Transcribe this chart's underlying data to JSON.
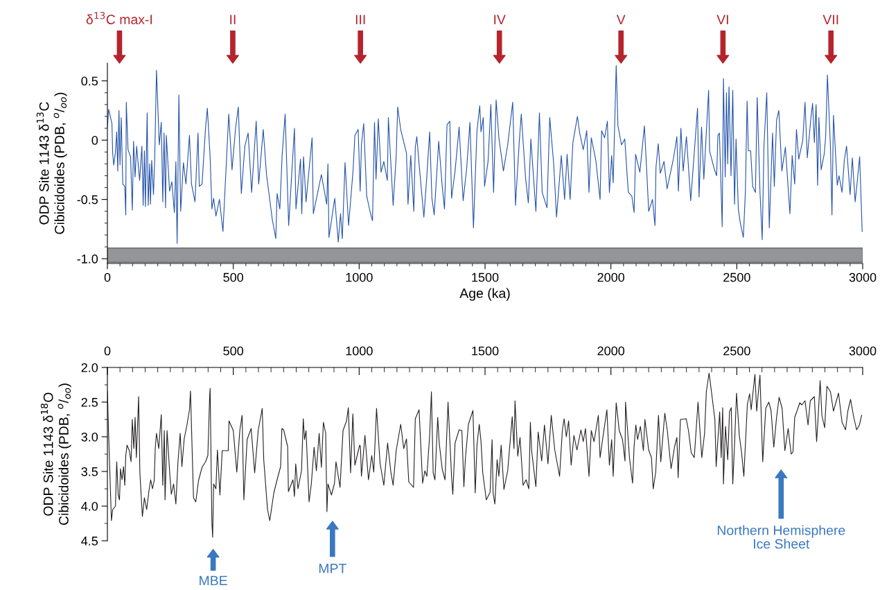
{
  "chart_data": [
    {
      "type": "line",
      "xlabel": "Age (ka)",
      "ylabel": "ODP Site 1143 δ$^{13}$C\nCibicidoides (PDB, $^{o}$/$_{oo}$)",
      "xlim": [
        0,
        3000
      ],
      "ylim": [
        -1.04,
        0.65
      ],
      "xticks": [
        0,
        500,
        1000,
        1500,
        2000,
        2500,
        3000,
        {
          "value": 50,
          "label": null
        },
        {
          "value": 100,
          "label": null
        },
        {
          "value": 150,
          "label": null
        },
        {
          "value": 200,
          "label": null
        },
        {
          "value": 250,
          "label": null
        },
        {
          "value": 300,
          "label": null
        },
        {
          "value": 350,
          "label": null
        },
        {
          "value": 400,
          "label": null
        },
        {
          "value": 450,
          "label": null
        },
        {
          "value": 550,
          "label": null
        },
        {
          "value": 600,
          "label": null
        },
        {
          "value": 650,
          "label": null
        },
        {
          "value": 700,
          "label": null
        },
        {
          "value": 750,
          "label": null
        },
        {
          "value": 800,
          "label": null
        },
        {
          "value": 850,
          "label": null
        },
        {
          "value": 900,
          "label": null
        },
        {
          "value": 950,
          "label": null
        },
        {
          "value": 1050,
          "label": null
        },
        {
          "value": 1100,
          "label": null
        },
        {
          "value": 1150,
          "label": null
        },
        {
          "value": 1200,
          "label": null
        },
        {
          "value": 1250,
          "label": null
        },
        {
          "value": 1300,
          "label": null
        },
        {
          "value": 1350,
          "label": null
        },
        {
          "value": 1400,
          "label": null
        },
        {
          "value": 1450,
          "label": null
        },
        {
          "value": 1550,
          "label": null
        },
        {
          "value": 1600,
          "label": null
        },
        {
          "value": 1650,
          "label": null
        },
        {
          "value": 1700,
          "label": null
        },
        {
          "value": 1750,
          "label": null
        },
        {
          "value": 1800,
          "label": null
        },
        {
          "value": 1850,
          "label": null
        },
        {
          "value": 1900,
          "label": null
        },
        {
          "value": 1950,
          "label": null
        },
        {
          "value": 2050,
          "label": null
        },
        {
          "value": 2100,
          "label": null
        },
        {
          "value": 2150,
          "label": null
        },
        {
          "value": 2200,
          "label": null
        },
        {
          "value": 2250,
          "label": null
        },
        {
          "value": 2300,
          "label": null
        },
        {
          "value": 2350,
          "label": null
        },
        {
          "value": 2400,
          "label": null
        },
        {
          "value": 2450,
          "label": null
        },
        {
          "value": 2550,
          "label": null
        },
        {
          "value": 2600,
          "label": null
        },
        {
          "value": 2650,
          "label": null
        },
        {
          "value": 2700,
          "label": null
        },
        {
          "value": 2750,
          "label": null
        },
        {
          "value": 2800,
          "label": null
        },
        {
          "value": 2850,
          "label": null
        },
        {
          "value": 2900,
          "label": null
        },
        {
          "value": 2950,
          "label": null
        }
      ],
      "yticks": [
        {
          "value": -1.0,
          "label": "-1.0"
        },
        {
          "value": -0.5,
          "label": "-0.5"
        },
        0,
        0.5,
        {
          "value": -0.9,
          "label": null
        },
        {
          "value": -0.8,
          "label": null
        },
        {
          "value": -0.7,
          "label": null
        },
        {
          "value": -0.6,
          "label": null
        },
        {
          "value": -0.4,
          "label": null
        },
        {
          "value": -0.3,
          "label": null
        },
        {
          "value": -0.2,
          "label": null
        },
        {
          "value": -0.1,
          "label": null
        },
        {
          "value": 0.1,
          "label": null
        },
        {
          "value": 0.2,
          "label": null
        },
        {
          "value": 0.3,
          "label": null
        },
        {
          "value": 0.4,
          "label": null
        }
      ],
      "bands": [
        {
          "axis": "y",
          "from": -1.03,
          "to": -0.91,
          "color": "#939598"
        }
      ],
      "annotations": [
        "δ$^{13}$C max-I",
        "II",
        "III",
        "IV",
        "V",
        "VI",
        "VII"
      ],
      "series": [
        {
          "color": "#2352a8",
          "x": [
            0,
            5,
            18,
            21,
            25,
            32,
            37,
            41,
            46,
            50,
            55,
            61,
            69,
            73,
            75,
            82,
            92,
            99,
            104,
            110,
            116,
            128,
            137,
            142,
            147,
            151,
            158,
            162,
            168,
            171,
            176,
            183,
            188,
            195,
            206,
            214,
            220,
            225,
            231,
            234,
            247,
            256,
            266,
            272,
            277,
            284,
            291,
            302,
            312,
            326,
            334,
            348,
            360,
            365,
            376,
            390,
            397,
            408,
            415,
            422,
            431,
            445,
            459,
            482,
            495,
            509,
            520,
            532,
            546,
            559,
            573,
            591,
            601,
            619,
            632,
            655,
            669,
            674,
            685,
            694,
            706,
            720,
            743,
            749,
            767,
            772,
            779,
            789,
            813,
            818,
            850,
            871,
            876,
            880,
            903,
            917,
            926,
            933,
            944,
            958,
            976,
            983,
            996,
            1004,
            1009,
            1018,
            1030,
            1043,
            1053,
            1061,
            1067,
            1076,
            1087,
            1098,
            1112,
            1116,
            1135,
            1147,
            1153,
            1165,
            1188,
            1194,
            1205,
            1217,
            1223,
            1229,
            1238,
            1257,
            1269,
            1280,
            1289,
            1298,
            1316,
            1330,
            1339,
            1349,
            1360,
            1367,
            1381,
            1397,
            1413,
            1427,
            1440,
            1454,
            1468,
            1479,
            1484,
            1493,
            1498,
            1512,
            1523,
            1534,
            1544,
            1555,
            1573,
            1590,
            1610,
            1621,
            1636,
            1644,
            1661,
            1672,
            1682,
            1702,
            1716,
            1727,
            1746,
            1757,
            1773,
            1784,
            1803,
            1816,
            1826,
            1838,
            1849,
            1867,
            1876,
            1890,
            1904,
            1913,
            1922,
            1940,
            1957,
            1963,
            1975,
            1986,
            1994,
            2003,
            2009,
            2021,
            2028,
            2042,
            2055,
            2069,
            2083,
            2092,
            2098,
            2115,
            2133,
            2142,
            2150,
            2165,
            2175,
            2179,
            2188,
            2196,
            2211,
            2223,
            2248,
            2262,
            2268,
            2278,
            2287,
            2300,
            2317,
            2344,
            2350,
            2360,
            2369,
            2388,
            2392,
            2410,
            2420,
            2425,
            2431,
            2442,
            2447,
            2454,
            2459,
            2464,
            2469,
            2477,
            2484,
            2491,
            2497,
            2506,
            2514,
            2526,
            2534,
            2541,
            2546,
            2555,
            2563,
            2574,
            2581,
            2592,
            2601,
            2608,
            2619,
            2629,
            2642,
            2649,
            2658,
            2667,
            2679,
            2693,
            2711,
            2720,
            2730,
            2737,
            2746,
            2762,
            2771,
            2780,
            2794,
            2801,
            2808,
            2815,
            2821,
            2826,
            2835,
            2847,
            2853,
            2860,
            2872,
            2878,
            2884,
            2899,
            2906,
            2918,
            2927,
            2936,
            2950,
            2959,
            2970,
            2977,
            2988,
            2998
          ],
          "values": [
            0.11,
            0.26,
            0.14,
            -0.11,
            -0.21,
            -0.1,
            0.07,
            -0.26,
            0.25,
            -0.21,
            0.19,
            -0.37,
            -0.39,
            -0.63,
            0.32,
            -0.08,
            -0.14,
            -0.59,
            -0.01,
            -0.31,
            -0.05,
            -0.34,
            -0.05,
            -0.55,
            -0.09,
            -0.56,
            0.23,
            -0.55,
            -0.2,
            -0.54,
            -0.17,
            -0.46,
            -0.15,
            0.59,
            -0.04,
            0.15,
            -0.52,
            0.06,
            -0.57,
            0.04,
            -0.43,
            -0.35,
            -0.61,
            -0.18,
            -0.87,
            0.38,
            -0.6,
            -0.19,
            -0.37,
            0.04,
            -0.37,
            -0.52,
            0.06,
            -0.39,
            -0.37,
            0.11,
            0.27,
            -0.14,
            -0.58,
            -0.49,
            -0.64,
            -0.5,
            -0.77,
            0.22,
            -0.25,
            0.1,
            0.28,
            -0.45,
            -0.05,
            0.06,
            -0.44,
            0.16,
            -0.37,
            0.09,
            -0.29,
            -0.67,
            -0.83,
            -0.45,
            -0.58,
            -0.13,
            0.22,
            -0.72,
            0.1,
            -0.58,
            -0.16,
            -0.62,
            -0.14,
            -0.52,
            0.02,
            -0.62,
            -0.29,
            -0.54,
            -0.2,
            -0.82,
            -0.49,
            -0.86,
            -0.62,
            -0.83,
            -0.19,
            -0.72,
            -0.25,
            0.04,
            0.09,
            -0.43,
            -0.04,
            0.14,
            -0.47,
            -0.6,
            -0.68,
            0.15,
            -0.33,
            0.18,
            -0.27,
            -0.18,
            -0.34,
            0.19,
            -0.55,
            -0.14,
            0.28,
            0.09,
            -0.11,
            -0.54,
            -0.13,
            -0.6,
            -0.06,
            0.03,
            -0.2,
            -0.65,
            -0.3,
            0.07,
            -0.49,
            -0.63,
            -0.01,
            -0.39,
            -0.58,
            0.13,
            0.16,
            -0.49,
            -0.26,
            0.11,
            -0.51,
            -0.24,
            0.15,
            -0.74,
            0.08,
            0.29,
            0.07,
            0.19,
            -0.39,
            -0.18,
            0.3,
            -0.44,
            0.34,
            0.02,
            -0.26,
            -0.04,
            0.32,
            -0.55,
            -0.01,
            0.22,
            -0.32,
            -0.53,
            0.01,
            -0.6,
            0.23,
            -0.44,
            -0.57,
            0.19,
            -0.21,
            -0.65,
            -0.13,
            -0.5,
            -0.12,
            -0.5,
            -0.02,
            0.2,
            0.06,
            -0.08,
            0.08,
            -0.44,
            0.02,
            -0.17,
            -0.5,
            0.08,
            0.02,
            0.16,
            -0.44,
            -0.13,
            -0.36,
            0.63,
            0.12,
            -0.04,
            0.01,
            -0.44,
            -0.47,
            -0.61,
            -0.12,
            -0.27,
            0.12,
            -0.25,
            -0.6,
            -0.5,
            -0.72,
            -0.23,
            -0.03,
            -0.28,
            -0.18,
            -0.41,
            -0.16,
            0.03,
            -0.43,
            0.1,
            -0.26,
            0.03,
            -0.51,
            0.27,
            -0.48,
            0.11,
            -0.33,
            0.42,
            -0.09,
            -0.24,
            -0.3,
            0.04,
            0.06,
            -0.73,
            0.52,
            -0.31,
            0.4,
            -0.2,
            0.45,
            -0.3,
            0.42,
            -0.54,
            0.01,
            -0.58,
            -0.7,
            -0.82,
            -0.44,
            0.33,
            -0.09,
            -0.09,
            -0.39,
            -0.44,
            0.36,
            -0.43,
            -0.84,
            -0.04,
            0.4,
            -0.74,
            0.06,
            -0.39,
            0.17,
            0.25,
            -0.26,
            -0.06,
            -0.62,
            -0.13,
            -0.37,
            0.09,
            -0.16,
            0.0,
            0.32,
            -0.15,
            0.18,
            0.31,
            -0.02,
            0.3,
            -0.38,
            0.19,
            -0.25,
            -0.12,
            0.03,
            0.55,
            -0.06,
            -0.63,
            0.21,
            -0.38,
            -0.3,
            -0.44,
            -0.17,
            -0.05,
            -0.46,
            -0.15,
            -0.52,
            -0.38,
            -0.14,
            -0.77
          ]
        }
      ]
    },
    {
      "type": "line",
      "ylabel": "ODP Site 1143 δ$^{18}$O\nCibicidoides (PDB, $^{o}$/$_{oo}$)",
      "xlim": [
        0,
        3000
      ],
      "ylim": [
        4.5,
        2.0
      ],
      "xticks": [
        0,
        500,
        1000,
        1500,
        2000,
        2500,
        3000,
        {
          "value": 50,
          "label": null
        },
        {
          "value": 100,
          "label": null
        },
        {
          "value": 150,
          "label": null
        },
        {
          "value": 200,
          "label": null
        },
        {
          "value": 250,
          "label": null
        },
        {
          "value": 300,
          "label": null
        },
        {
          "value": 350,
          "label": null
        },
        {
          "value": 400,
          "label": null
        },
        {
          "value": 450,
          "label": null
        },
        {
          "value": 550,
          "label": null
        },
        {
          "value": 600,
          "label": null
        },
        {
          "value": 650,
          "label": null
        },
        {
          "value": 700,
          "label": null
        },
        {
          "value": 750,
          "label": null
        },
        {
          "value": 800,
          "label": null
        },
        {
          "value": 850,
          "label": null
        },
        {
          "value": 900,
          "label": null
        },
        {
          "value": 950,
          "label": null
        },
        {
          "value": 1050,
          "label": null
        },
        {
          "value": 1100,
          "label": null
        },
        {
          "value": 1150,
          "label": null
        },
        {
          "value": 1200,
          "label": null
        },
        {
          "value": 1250,
          "label": null
        },
        {
          "value": 1300,
          "label": null
        },
        {
          "value": 1350,
          "label": null
        },
        {
          "value": 1400,
          "label": null
        },
        {
          "value": 1450,
          "label": null
        },
        {
          "value": 1550,
          "label": null
        },
        {
          "value": 1600,
          "label": null
        },
        {
          "value": 1650,
          "label": null
        },
        {
          "value": 1700,
          "label": null
        },
        {
          "value": 1750,
          "label": null
        },
        {
          "value": 1800,
          "label": null
        },
        {
          "value": 1850,
          "label": null
        },
        {
          "value": 1900,
          "label": null
        },
        {
          "value": 1950,
          "label": null
        },
        {
          "value": 2050,
          "label": null
        },
        {
          "value": 2100,
          "label": null
        },
        {
          "value": 2150,
          "label": null
        },
        {
          "value": 2200,
          "label": null
        },
        {
          "value": 2250,
          "label": null
        },
        {
          "value": 2300,
          "label": null
        },
        {
          "value": 2350,
          "label": null
        },
        {
          "value": 2400,
          "label": null
        },
        {
          "value": 2450,
          "label": null
        },
        {
          "value": 2550,
          "label": null
        },
        {
          "value": 2600,
          "label": null
        },
        {
          "value": 2650,
          "label": null
        },
        {
          "value": 2700,
          "label": null
        },
        {
          "value": 2750,
          "label": null
        },
        {
          "value": 2800,
          "label": null
        },
        {
          "value": 2850,
          "label": null
        },
        {
          "value": 2900,
          "label": null
        },
        {
          "value": 2950,
          "label": null
        }
      ],
      "yticks": [
        {
          "value": 2.0,
          "label": "2.0"
        },
        2.5,
        {
          "value": 3.0,
          "label": "3.0"
        },
        3.5,
        {
          "value": 4.0,
          "label": "4.0"
        },
        4.5,
        {
          "value": 2.25,
          "label": null
        },
        {
          "value": 2.75,
          "label": null
        },
        {
          "value": 3.25,
          "label": null
        },
        {
          "value": 3.75,
          "label": null
        },
        {
          "value": 4.25,
          "label": null
        }
      ],
      "annotations": [
        "MBE",
        "MPT",
        "Northern Hemisphere\nIce Sheet"
      ],
      "series": [
        {
          "color": "#231f20",
          "x": [
            0,
            5,
            16,
            21,
            32,
            37,
            43,
            48,
            52,
            58,
            64,
            69,
            73,
            78,
            87,
            94,
            99,
            105,
            110,
            115,
            119,
            124,
            129,
            139,
            147,
            156,
            165,
            172,
            179,
            186,
            190,
            195,
            204,
            214,
            220,
            226,
            229,
            237,
            248,
            254,
            263,
            272,
            280,
            289,
            296,
            305,
            316,
            326,
            330,
            342,
            351,
            362,
            376,
            390,
            399,
            406,
            408,
            415,
            418,
            422,
            431,
            437,
            447,
            456,
            480,
            483,
            500,
            514,
            526,
            535,
            542,
            555,
            571,
            585,
            599,
            615,
            621,
            636,
            645,
            661,
            674,
            688,
            693,
            700,
            716,
            719,
            737,
            743,
            748,
            757,
            771,
            778,
            783,
            789,
            801,
            810,
            821,
            830,
            841,
            850,
            858,
            867,
            872,
            876,
            890,
            902,
            908,
            924,
            936,
            950,
            957,
            966,
            975,
            983,
            1002,
            1005,
            1009,
            1023,
            1037,
            1050,
            1058,
            1069,
            1083,
            1098,
            1113,
            1126,
            1135,
            1147,
            1165,
            1177,
            1188,
            1197,
            1216,
            1223,
            1238,
            1252,
            1261,
            1269,
            1280,
            1287,
            1294,
            1301,
            1312,
            1318,
            1330,
            1341,
            1353,
            1367,
            1372,
            1381,
            1397,
            1408,
            1416,
            1422,
            1434,
            1452,
            1461,
            1468,
            1477,
            1484,
            1491,
            1505,
            1520,
            1528,
            1532,
            1539,
            1548,
            1555,
            1564,
            1575,
            1590,
            1608,
            1615,
            1619,
            1630,
            1639,
            1651,
            1663,
            1674,
            1680,
            1685,
            1702,
            1711,
            1725,
            1736,
            1750,
            1763,
            1777,
            1796,
            1807,
            1814,
            1823,
            1832,
            1842,
            1853,
            1865,
            1881,
            1890,
            1899,
            1913,
            1922,
            1933,
            1950,
            1957,
            1968,
            1984,
            1994,
            2003,
            2009,
            2021,
            2033,
            2046,
            2056,
            2058,
            2074,
            2086,
            2092,
            2099,
            2106,
            2117,
            2129,
            2135,
            2150,
            2161,
            2168,
            2178,
            2189,
            2198,
            2214,
            2224,
            2239,
            2253,
            2262,
            2267,
            2276,
            2299,
            2308,
            2319,
            2331,
            2346,
            2361,
            2372,
            2379,
            2390,
            2400,
            2413,
            2418,
            2432,
            2438,
            2444,
            2447,
            2455,
            2464,
            2471,
            2478,
            2484,
            2491,
            2499,
            2510,
            2519,
            2528,
            2542,
            2551,
            2557,
            2572,
            2579,
            2592,
            2603,
            2615,
            2627,
            2636,
            2647,
            2658,
            2668,
            2680,
            2691,
            2704,
            2716,
            2723,
            2730,
            2741,
            2750,
            2759,
            2771,
            2783,
            2792,
            2808,
            2817,
            2822,
            2831,
            2838,
            2849,
            2858,
            2872,
            2884,
            2904,
            2918,
            2932,
            2941,
            2952,
            2964,
            2976,
            2987,
            2996
          ],
          "values": [
            2.34,
            2.98,
            4.21,
            4.05,
            4.0,
            3.36,
            3.84,
            3.91,
            3.46,
            3.62,
            3.43,
            3.7,
            3.27,
            3.12,
            3.2,
            3.36,
            2.75,
            3.17,
            2.72,
            3.3,
            2.91,
            2.42,
            3.52,
            4.15,
            3.88,
            4.05,
            3.78,
            3.62,
            3.75,
            3.63,
            3.17,
            2.95,
            3.17,
            2.68,
            3.7,
            2.91,
            3.91,
            2.91,
            3.55,
            3.83,
            3.68,
            3.97,
            3.38,
            2.95,
            3.43,
            3.03,
            2.83,
            2.61,
            2.34,
            3.88,
            3.94,
            3.63,
            3.44,
            3.36,
            3.27,
            2.43,
            2.3,
            4.23,
            4.45,
            3.68,
            3.75,
            3.19,
            3.84,
            3.2,
            3.2,
            2.77,
            2.91,
            3.51,
            2.91,
            2.69,
            3.91,
            3.04,
            2.88,
            3.52,
            2.91,
            2.59,
            3.33,
            4.05,
            4.21,
            3.81,
            3.62,
            3.43,
            2.88,
            2.9,
            3.14,
            3.79,
            3.62,
            3.86,
            3.39,
            3.75,
            3.49,
            2.74,
            3.04,
            2.91,
            3.94,
            3.68,
            3.15,
            3.49,
            2.95,
            3.44,
            2.79,
            2.95,
            4.08,
            3.68,
            3.84,
            3.67,
            3.36,
            3.73,
            2.91,
            2.77,
            2.58,
            3.52,
            2.67,
            3.41,
            3.12,
            3.14,
            3.57,
            2.98,
            3.62,
            3.27,
            3.51,
            2.59,
            3.38,
            3.7,
            3.09,
            3.51,
            3.7,
            3.2,
            2.82,
            3.17,
            3.03,
            3.65,
            3.73,
            2.74,
            2.61,
            3.67,
            3.49,
            3.57,
            2.98,
            2.35,
            3.52,
            3.62,
            2.72,
            3.09,
            3.47,
            3.62,
            2.5,
            3.57,
            3.83,
            3.09,
            2.9,
            2.91,
            3.72,
            3.31,
            2.82,
            2.62,
            3.81,
            3.12,
            2.82,
            3.07,
            3.52,
            3.91,
            3.8,
            3.04,
            3.81,
            3.97,
            3.33,
            3.57,
            3.12,
            3.76,
            3.49,
            2.71,
            3.17,
            2.48,
            3.28,
            3.01,
            3.7,
            3.62,
            3.75,
            2.79,
            3.2,
            3.72,
            2.93,
            3.35,
            2.83,
            3.39,
            2.69,
            3.19,
            3.57,
            2.91,
            2.74,
            3.0,
            2.77,
            3.41,
            2.98,
            3.19,
            2.9,
            3.07,
            2.88,
            3.57,
            2.91,
            3.07,
            2.69,
            3.3,
            3.01,
            2.61,
            3.41,
            3.04,
            3.57,
            2.51,
            2.91,
            3.04,
            3.35,
            2.5,
            3.31,
            3.67,
            3.14,
            2.83,
            3.04,
            2.85,
            3.2,
            2.75,
            3.19,
            3.3,
            3.75,
            3.51,
            2.69,
            3.36,
            2.66,
            2.91,
            3.46,
            3.14,
            3.01,
            3.59,
            2.75,
            2.74,
            2.91,
            3.23,
            3.3,
            2.5,
            3.3,
            2.95,
            2.35,
            2.08,
            2.37,
            2.75,
            3.43,
            2.64,
            3.3,
            2.58,
            3.68,
            2.85,
            3.33,
            2.64,
            2.58,
            3.68,
            3.11,
            2.37,
            2.98,
            3.23,
            3.57,
            2.53,
            2.38,
            2.61,
            2.1,
            2.63,
            2.11,
            3.36,
            2.59,
            2.5,
            2.62,
            3.15,
            2.72,
            2.43,
            2.59,
            3.2,
            2.88,
            3.25,
            3.22,
            2.72,
            2.61,
            2.51,
            2.54,
            2.48,
            2.83,
            2.48,
            2.42,
            3.07,
            2.79,
            2.19,
            2.69,
            2.87,
            2.27,
            2.35,
            2.63,
            2.37,
            2.79,
            2.9,
            2.63,
            2.46,
            2.71,
            2.9,
            2.83,
            2.69
          ]
        }
      ]
    }
  ]
}
